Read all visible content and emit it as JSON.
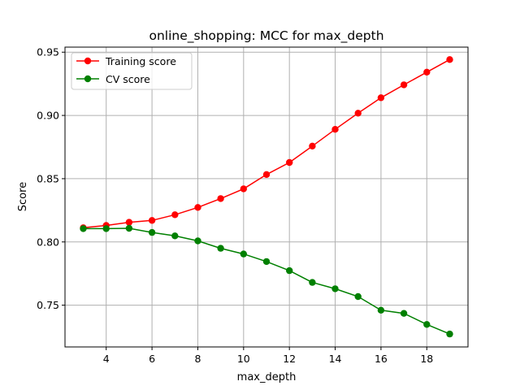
{
  "chart_data": {
    "type": "line",
    "title": "online_shopping: MCC for max_depth",
    "xlabel": "max_depth",
    "ylabel": "Score",
    "x": [
      3,
      4,
      5,
      6,
      7,
      8,
      9,
      10,
      11,
      12,
      13,
      14,
      15,
      16,
      17,
      18,
      19
    ],
    "series": [
      {
        "name": "Training score",
        "color": "#ff0000",
        "values": [
          0.8112,
          0.813,
          0.8155,
          0.817,
          0.8215,
          0.8273,
          0.8343,
          0.842,
          0.8533,
          0.8628,
          0.8758,
          0.889,
          0.9018,
          0.914,
          0.9242,
          0.9342,
          0.9442
        ]
      },
      {
        "name": "CV score",
        "color": "#008000",
        "values": [
          0.8105,
          0.8105,
          0.8108,
          0.8075,
          0.8048,
          0.8008,
          0.795,
          0.7905,
          0.7845,
          0.7773,
          0.768,
          0.763,
          0.7568,
          0.746,
          0.7435,
          0.7348,
          0.7272
        ]
      }
    ],
    "xlim": [
      2.2,
      19.8
    ],
    "ylim": [
      0.717,
      0.954
    ],
    "xticks": [
      4,
      6,
      8,
      10,
      12,
      14,
      16,
      18
    ],
    "yticks": [
      0.75,
      0.8,
      0.85,
      0.9,
      0.95
    ],
    "ytick_labels": [
      "0.75",
      "0.80",
      "0.85",
      "0.90",
      "0.95"
    ],
    "grid": true,
    "legend_position": "upper-left"
  }
}
